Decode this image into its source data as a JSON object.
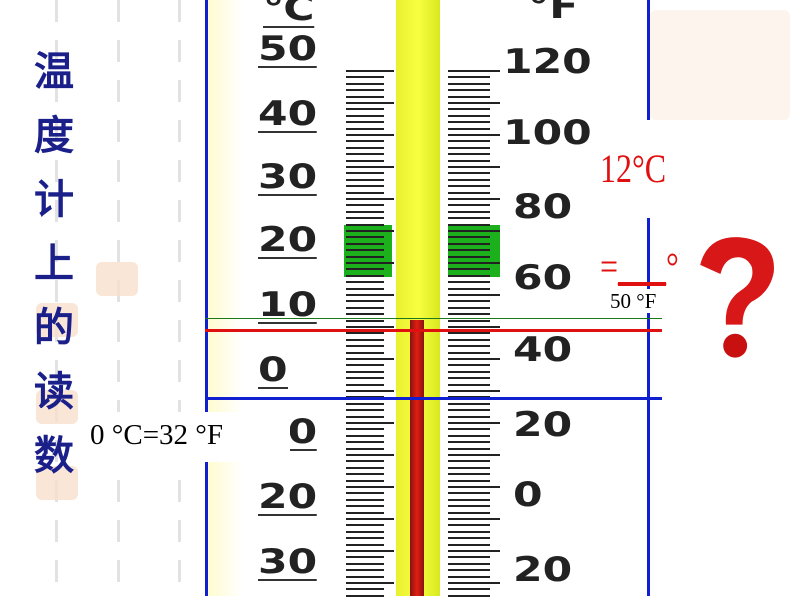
{
  "title": [
    "温",
    "度",
    "计",
    "上",
    "的",
    "读",
    "数"
  ],
  "celsius_labels": [
    "℃",
    "50",
    "40",
    "30",
    "20",
    "10",
    "0",
    "10",
    "20",
    "30"
  ],
  "fahrenheit_labels": [
    "°F",
    "120",
    "100",
    "80",
    "60",
    "40",
    "20",
    "0",
    "20"
  ],
  "annotation_50f": "50 °F",
  "annotation_zero": "0 °C=32 °F",
  "question": {
    "lhs": "12°C =",
    "blank": "___",
    "unit": "°F"
  },
  "colors": {
    "title": "#1a1f8a",
    "frame": "#1020d0",
    "question": "#e01010",
    "green_line": "#1a7a1a",
    "red_line": "#e01010"
  },
  "icons": [
    "question-mark-icon",
    "seal-stamp-icon"
  ]
}
